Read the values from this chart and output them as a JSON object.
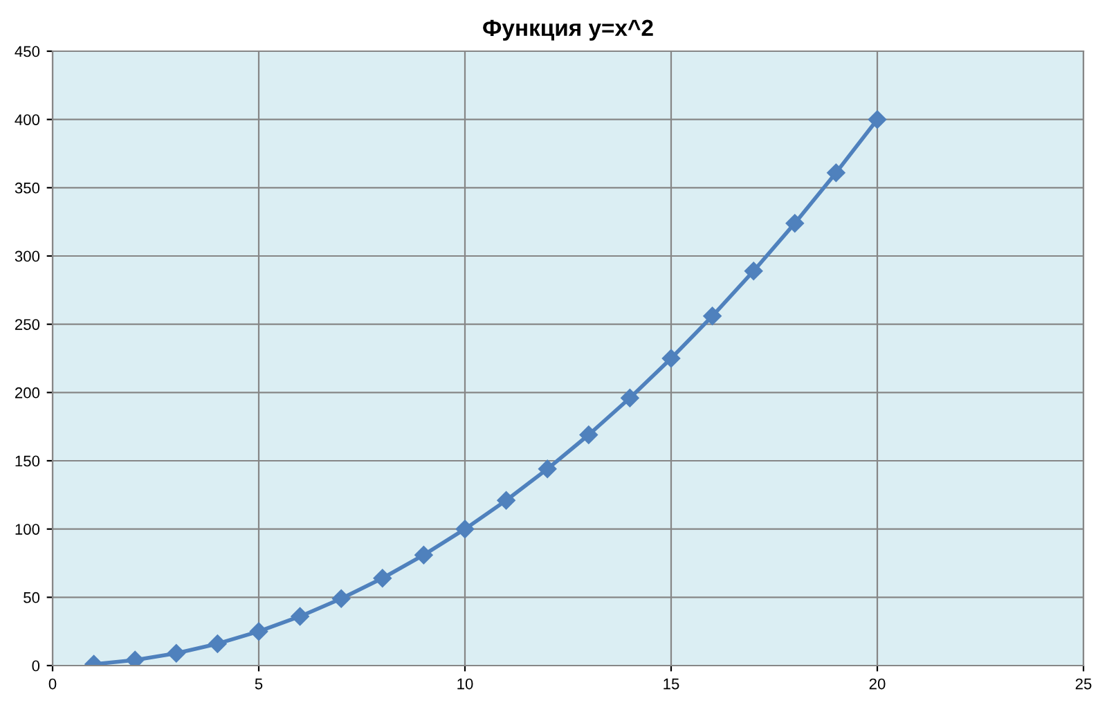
{
  "chart_data": {
    "type": "line",
    "title": "Функция y=x^2",
    "x": [
      1,
      2,
      3,
      4,
      5,
      6,
      7,
      8,
      9,
      10,
      11,
      12,
      13,
      14,
      15,
      16,
      17,
      18,
      19,
      20
    ],
    "series": [
      {
        "color": "#4f81bd",
        "values": [
          1,
          4,
          9,
          16,
          25,
          36,
          49,
          64,
          81,
          100,
          121,
          144,
          169,
          196,
          225,
          256,
          289,
          324,
          361,
          400
        ]
      }
    ],
    "xlim": [
      0,
      25
    ],
    "xticks": [
      0,
      5,
      10,
      15,
      20,
      25
    ],
    "ylim": [
      0,
      450
    ],
    "yticks": [
      0,
      50,
      100,
      150,
      200,
      250,
      300,
      350,
      400,
      450
    ],
    "grid": true,
    "marker": "diamond",
    "line_style": "solid",
    "legend": false
  }
}
